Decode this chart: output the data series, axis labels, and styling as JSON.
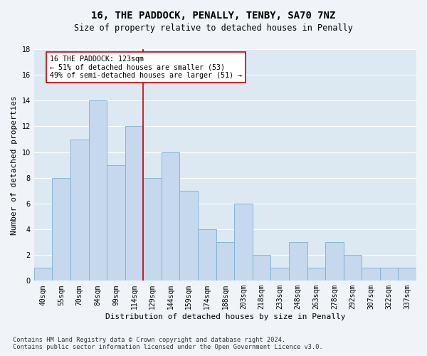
{
  "title": "16, THE PADDOCK, PENALLY, TENBY, SA70 7NZ",
  "subtitle": "Size of property relative to detached houses in Penally",
  "xlabel": "Distribution of detached houses by size in Penally",
  "ylabel": "Number of detached properties",
  "categories": [
    "40sqm",
    "55sqm",
    "70sqm",
    "84sqm",
    "99sqm",
    "114sqm",
    "129sqm",
    "144sqm",
    "159sqm",
    "174sqm",
    "188sqm",
    "203sqm",
    "218sqm",
    "233sqm",
    "248sqm",
    "263sqm",
    "278sqm",
    "292sqm",
    "307sqm",
    "322sqm",
    "337sqm"
  ],
  "values": [
    1,
    8,
    11,
    14,
    9,
    12,
    8,
    10,
    7,
    4,
    3,
    6,
    2,
    1,
    3,
    1,
    3,
    2,
    1,
    1,
    1
  ],
  "bar_color": "#c5d8ed",
  "bar_edge_color": "#7ab0d4",
  "bar_linewidth": 0.6,
  "vline_x_idx": 5,
  "vline_color": "#cc0000",
  "vline_linewidth": 1.2,
  "annotation_text": "16 THE PADDOCK: 123sqm\n← 51% of detached houses are smaller (53)\n49% of semi-detached houses are larger (51) →",
  "annotation_box_color": "#ffffff",
  "annotation_box_edge": "#cc0000",
  "ylim": [
    0,
    18
  ],
  "yticks": [
    0,
    2,
    4,
    6,
    8,
    10,
    12,
    14,
    16,
    18
  ],
  "footnote": "Contains HM Land Registry data © Crown copyright and database right 2024.\nContains public sector information licensed under the Open Government Licence v3.0.",
  "fig_bg_color": "#f0f4f8",
  "ax_bg_color": "#dce8f2",
  "grid_color": "#ffffff",
  "title_fontsize": 10,
  "subtitle_fontsize": 8.5,
  "axis_label_fontsize": 8,
  "tick_fontsize": 7,
  "footnote_fontsize": 6.2,
  "annotation_fontsize": 7.2
}
